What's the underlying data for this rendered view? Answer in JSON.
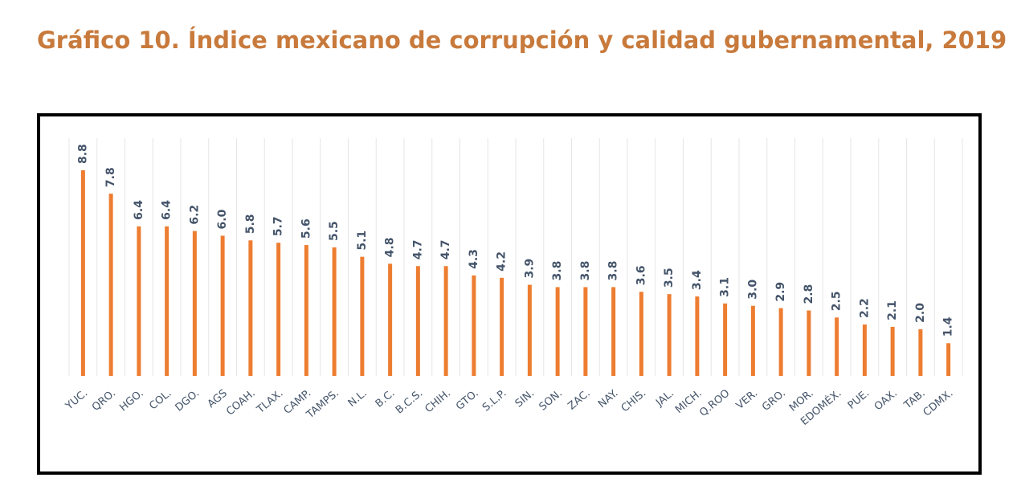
{
  "chart_data": {
    "type": "bar",
    "title": "Gráfico 10. Índice mexicano de corrupción y calidad gubernamental, 2019",
    "categories": [
      "YUC.",
      "QRO.",
      "HGO.",
      "COL.",
      "DGO.",
      "AGS",
      "COAH.",
      "TLAX.",
      "CAMP.",
      "TAMPS.",
      "N.L.",
      "B.C.",
      "B.C.S.",
      "CHIH.",
      "GTO.",
      "S.L.P.",
      "SIN.",
      "SON.",
      "ZAC.",
      "NAY.",
      "CHIS.",
      "JAL.",
      "MICH.",
      "Q.ROO",
      "VER.",
      "GRO.",
      "MOR.",
      "EDOMÉX.",
      "PUE.",
      "OAX.",
      "TAB.",
      "CDMX."
    ],
    "values": [
      8.8,
      7.8,
      6.4,
      6.4,
      6.2,
      6.0,
      5.8,
      5.7,
      5.6,
      5.5,
      5.1,
      4.8,
      4.7,
      4.7,
      4.3,
      4.2,
      3.9,
      3.8,
      3.8,
      3.8,
      3.6,
      3.5,
      3.4,
      3.1,
      3.0,
      2.9,
      2.8,
      2.5,
      2.2,
      2.1,
      2.0,
      1.4
    ],
    "value_labels": [
      "8.8",
      "7.8",
      "6.4",
      "6.4",
      "6.2",
      "6.0",
      "5.8",
      "5.7",
      "5.6",
      "5.5",
      "5.1",
      "4.8",
      "4.7",
      "4.7",
      "4.3",
      "4.2",
      "3.9",
      "3.8",
      "3.8",
      "3.8",
      "3.6",
      "3.5",
      "3.4",
      "3.1",
      "3.0",
      "2.9",
      "2.8",
      "2.5",
      "2.2",
      "2.1",
      "2.0",
      "1.4"
    ],
    "color": "#ed7d31"
  }
}
